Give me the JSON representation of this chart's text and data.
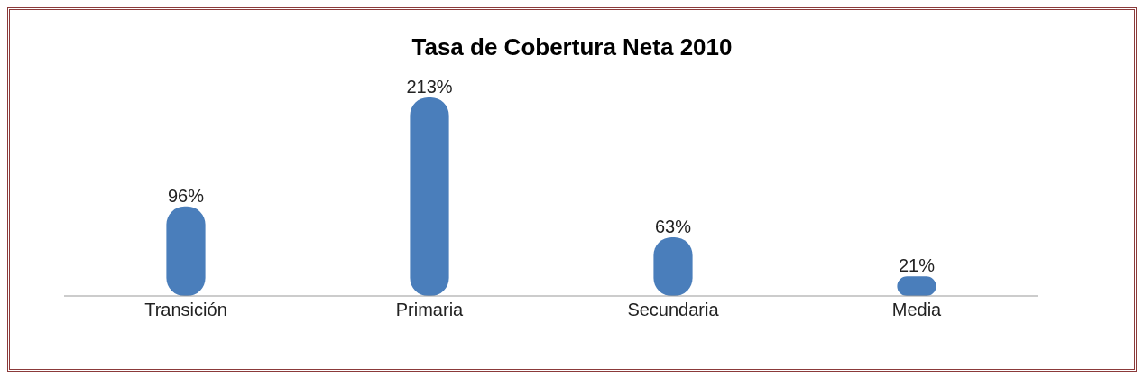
{
  "chart_data": {
    "type": "bar",
    "title": "Tasa de Cobertura Neta  2010",
    "categories": [
      "Transición",
      "Primaria",
      "Secundaria",
      "Media"
    ],
    "values": [
      96,
      213,
      63,
      21
    ],
    "value_labels": [
      "96%",
      "213%",
      "63%",
      "21%"
    ],
    "color": "#4a7ebb"
  }
}
